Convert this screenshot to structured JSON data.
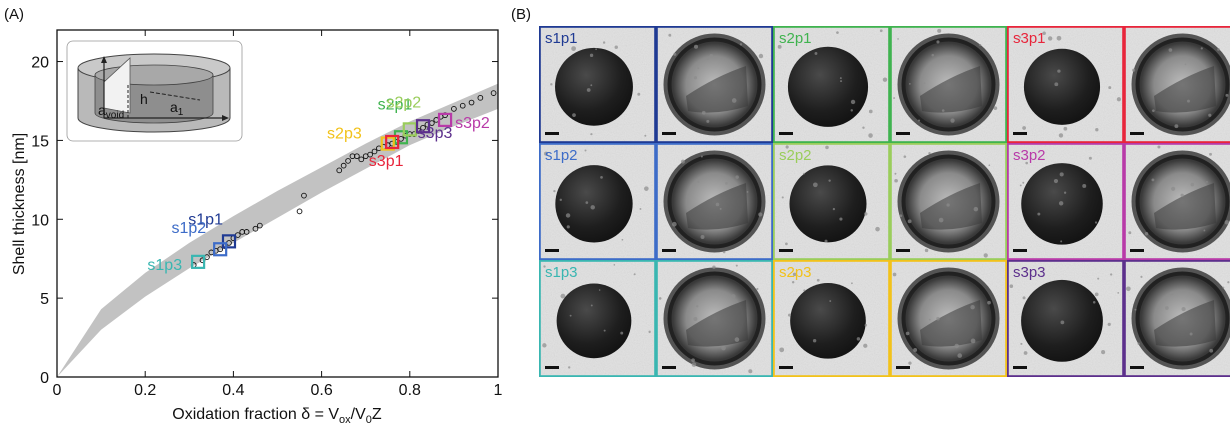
{
  "chart_data": {
    "type": "scatter",
    "panel_a_label": "(A)",
    "panel_b_label": "(B)",
    "xlabel_prefix": "Oxidation fraction δ = V",
    "xlabel_sub1": "ox",
    "xlabel_mid": "/V",
    "xlabel_sub2": "0",
    "xlabel_suffix": "Z",
    "ylabel": "Shell thickness [nm]",
    "xlim": [
      0,
      1
    ],
    "ylim": [
      0,
      22
    ],
    "xticks": [
      0,
      0.2,
      0.4,
      0.6,
      0.8,
      1
    ],
    "xtick_labels": [
      "0",
      "0.2",
      "0.4",
      "0.6",
      "0.8",
      "1"
    ],
    "yticks": [
      0,
      5,
      10,
      15,
      20
    ],
    "ytick_labels": [
      "0",
      "5",
      "10",
      "15",
      "20"
    ],
    "band_upper": [
      [
        0,
        0
      ],
      [
        0.1,
        4.3
      ],
      [
        0.2,
        6.6
      ],
      [
        0.3,
        8.5
      ],
      [
        0.4,
        10.2
      ],
      [
        0.5,
        11.8
      ],
      [
        0.6,
        13.3
      ],
      [
        0.7,
        14.8
      ],
      [
        0.8,
        16.2
      ],
      [
        0.9,
        17.4
      ],
      [
        1.0,
        18.6
      ]
    ],
    "band_lower": [
      [
        0,
        0
      ],
      [
        0.1,
        3.0
      ],
      [
        0.2,
        5.1
      ],
      [
        0.3,
        6.9
      ],
      [
        0.4,
        8.5
      ],
      [
        0.5,
        10.1
      ],
      [
        0.6,
        11.7
      ],
      [
        0.7,
        13.2
      ],
      [
        0.8,
        14.7
      ],
      [
        0.9,
        15.9
      ],
      [
        1.0,
        17.0
      ]
    ],
    "points": [
      [
        0.31,
        7.1
      ],
      [
        0.33,
        7.4
      ],
      [
        0.34,
        7.6
      ],
      [
        0.35,
        7.9
      ],
      [
        0.36,
        8.0
      ],
      [
        0.37,
        8.1
      ],
      [
        0.38,
        8.3
      ],
      [
        0.39,
        8.5
      ],
      [
        0.4,
        8.8
      ],
      [
        0.41,
        9.0
      ],
      [
        0.42,
        9.2
      ],
      [
        0.43,
        9.2
      ],
      [
        0.45,
        9.4
      ],
      [
        0.46,
        9.6
      ],
      [
        0.55,
        10.5
      ],
      [
        0.56,
        11.5
      ],
      [
        0.64,
        13.1
      ],
      [
        0.65,
        13.4
      ],
      [
        0.66,
        13.7
      ],
      [
        0.67,
        14.0
      ],
      [
        0.68,
        14.0
      ],
      [
        0.69,
        13.8
      ],
      [
        0.7,
        14.0
      ],
      [
        0.71,
        14.1
      ],
      [
        0.72,
        14.3
      ],
      [
        0.73,
        14.5
      ],
      [
        0.74,
        14.6
      ],
      [
        0.75,
        14.7
      ],
      [
        0.76,
        14.8
      ],
      [
        0.77,
        14.9
      ],
      [
        0.78,
        15.1
      ],
      [
        0.79,
        15.3
      ],
      [
        0.8,
        15.4
      ],
      [
        0.81,
        15.4
      ],
      [
        0.82,
        15.6
      ],
      [
        0.83,
        15.8
      ],
      [
        0.84,
        16.0
      ],
      [
        0.85,
        16.1
      ],
      [
        0.86,
        16.3
      ],
      [
        0.87,
        16.5
      ],
      [
        0.88,
        16.6
      ],
      [
        0.9,
        17.0
      ],
      [
        0.92,
        17.2
      ],
      [
        0.94,
        17.4
      ],
      [
        0.96,
        17.7
      ],
      [
        0.99,
        18.0
      ]
    ],
    "series": [
      {
        "name": "s1p1",
        "x": 0.39,
        "y": 8.6,
        "color": "#1f3a93"
      },
      {
        "name": "s1p2",
        "x": 0.37,
        "y": 8.1,
        "color": "#3d6cc8"
      },
      {
        "name": "s1p3",
        "x": 0.32,
        "y": 7.3,
        "color": "#39b6b1"
      },
      {
        "name": "s2p1",
        "x": 0.78,
        "y": 15.2,
        "color": "#3fb34f"
      },
      {
        "name": "s2p2",
        "x": 0.8,
        "y": 15.7,
        "color": "#9acd5b"
      },
      {
        "name": "s2p3",
        "x": 0.75,
        "y": 14.8,
        "color": "#f2c21a"
      },
      {
        "name": "s3p1",
        "x": 0.76,
        "y": 14.9,
        "color": "#e8253b"
      },
      {
        "name": "s3p2",
        "x": 0.88,
        "y": 16.3,
        "color": "#b83aa8"
      },
      {
        "name": "s3p3",
        "x": 0.83,
        "y": 15.9,
        "color": "#5c2f8c"
      }
    ],
    "inset": {
      "a_void_main": "a",
      "a_void_sub": "void",
      "h_label": "h",
      "a1_main": "a",
      "a1_sub": "1"
    }
  },
  "micrograph_grid": {
    "rows": [
      [
        "s1p1",
        "s2p1",
        "s3p1"
      ],
      [
        "s1p2",
        "s2p2",
        "s3p2"
      ],
      [
        "s1p3",
        "s2p3",
        "s3p3"
      ]
    ]
  }
}
